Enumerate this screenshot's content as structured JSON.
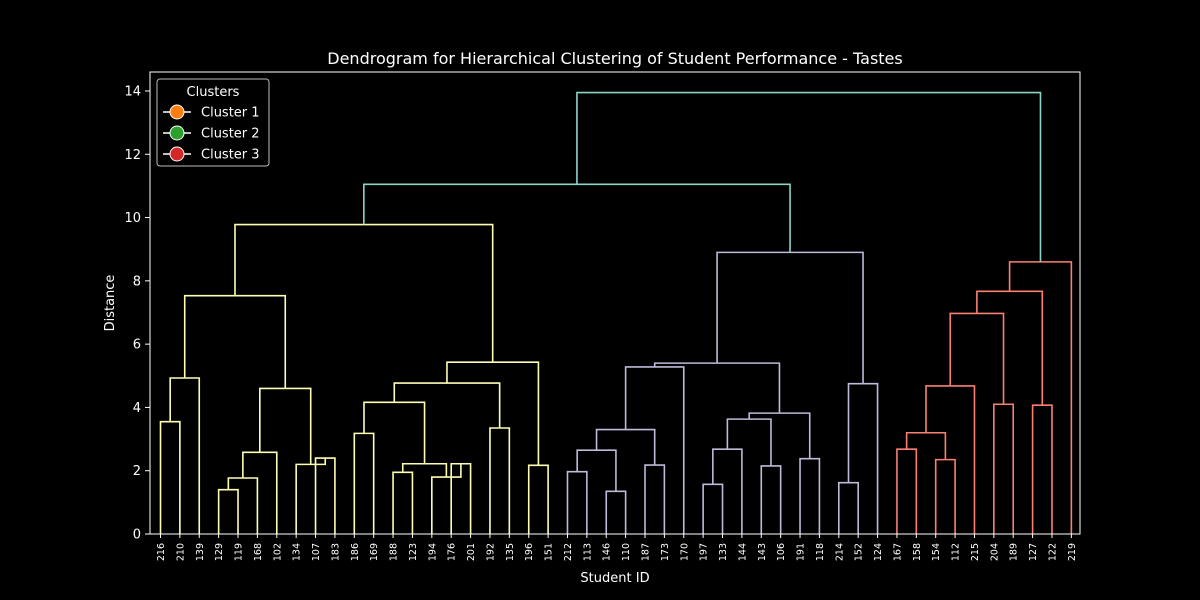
{
  "chart_data": {
    "type": "dendrogram",
    "title": "Dendrogram for Hierarchical Clustering of Student Performance - Tastes",
    "xlabel": "Student ID",
    "ylabel": "Distance",
    "ylim": [
      0,
      14.6
    ],
    "yticks": [
      0,
      2,
      4,
      6,
      8,
      10,
      12,
      14
    ],
    "leaves": [
      "216",
      "210",
      "139",
      "129",
      "119",
      "168",
      "102",
      "134",
      "107",
      "183",
      "186",
      "169",
      "188",
      "123",
      "194",
      "176",
      "201",
      "192",
      "135",
      "196",
      "151",
      "212",
      "113",
      "146",
      "110",
      "187",
      "173",
      "170",
      "197",
      "133",
      "144",
      "143",
      "106",
      "191",
      "118",
      "214",
      "152",
      "124",
      "167",
      "158",
      "154",
      "112",
      "215",
      "204",
      "189",
      "127",
      "122",
      "219"
    ],
    "legend": {
      "title": "Clusters",
      "position": "upper-left",
      "items": [
        {
          "label": "Cluster 1",
          "color": "#ff7f0e"
        },
        {
          "label": "Cluster 2",
          "color": "#2ca02c"
        },
        {
          "label": "Cluster 3",
          "color": "#d62728"
        }
      ]
    },
    "colors": {
      "background": "#000000",
      "axes": "#ffffff",
      "root_link": "#8dd3c7",
      "group_1": "#ffffb3",
      "group_2": "#bebada",
      "group_3": "#fb8072"
    },
    "merges": [
      {
        "left": 0,
        "right": 1,
        "height": 3.55,
        "color": "group_1"
      },
      {
        "left": 48,
        "right": 2,
        "height": 4.93,
        "color": "group_1"
      },
      {
        "left": 3,
        "right": 4,
        "height": 1.4,
        "color": "group_1"
      },
      {
        "left": 50,
        "right": 5,
        "height": 1.77,
        "color": "group_1"
      },
      {
        "left": 51,
        "right": 6,
        "height": 2.58,
        "color": "group_1"
      },
      {
        "left": 8,
        "right": 9,
        "height": 2.4,
        "color": "group_1"
      },
      {
        "left": 7,
        "right": 53,
        "height": 2.2,
        "color": "group_1"
      },
      {
        "left": 52,
        "right": 54,
        "height": 4.6,
        "color": "group_1"
      },
      {
        "left": 49,
        "right": 55,
        "height": 7.53,
        "color": "group_1"
      },
      {
        "left": 10,
        "right": 11,
        "height": 3.18,
        "color": "group_1"
      },
      {
        "left": 12,
        "right": 13,
        "height": 1.95,
        "color": "group_1"
      },
      {
        "left": 15,
        "right": 16,
        "height": 2.22,
        "color": "group_1"
      },
      {
        "left": 14,
        "right": 59,
        "height": 1.8,
        "color": "group_1"
      },
      {
        "left": 58,
        "right": 60,
        "height": 2.22,
        "color": "group_1"
      },
      {
        "left": 57,
        "right": 61,
        "height": 4.16,
        "color": "group_1"
      },
      {
        "left": 17,
        "right": 18,
        "height": 3.35,
        "color": "group_1"
      },
      {
        "left": 62,
        "right": 63,
        "height": 4.77,
        "color": "group_1"
      },
      {
        "left": 19,
        "right": 20,
        "height": 2.17,
        "color": "group_1"
      },
      {
        "left": 64,
        "right": 65,
        "height": 5.43,
        "color": "group_1"
      },
      {
        "left": 56,
        "right": 66,
        "height": 9.78,
        "color": "group_1"
      },
      {
        "left": 21,
        "right": 22,
        "height": 1.97,
        "color": "group_2"
      },
      {
        "left": 23,
        "right": 24,
        "height": 1.35,
        "color": "group_2"
      },
      {
        "left": 68,
        "right": 69,
        "height": 2.65,
        "color": "group_2"
      },
      {
        "left": 25,
        "right": 26,
        "height": 2.18,
        "color": "group_2"
      },
      {
        "left": 70,
        "right": 71,
        "height": 3.3,
        "color": "group_2"
      },
      {
        "left": 72,
        "right": 27,
        "height": 5.28,
        "color": "group_2"
      },
      {
        "left": 28,
        "right": 29,
        "height": 1.57,
        "color": "group_2"
      },
      {
        "left": 74,
        "right": 30,
        "height": 2.68,
        "color": "group_2"
      },
      {
        "left": 31,
        "right": 32,
        "height": 2.15,
        "color": "group_2"
      },
      {
        "left": 75,
        "right": 76,
        "height": 3.63,
        "color": "group_2"
      },
      {
        "left": 33,
        "right": 34,
        "height": 2.38,
        "color": "group_2"
      },
      {
        "left": 77,
        "right": 78,
        "height": 3.82,
        "color": "group_2"
      },
      {
        "left": 73,
        "right": 79,
        "height": 5.4,
        "color": "group_2"
      },
      {
        "left": 35,
        "right": 36,
        "height": 1.62,
        "color": "group_2"
      },
      {
        "left": 81,
        "right": 37,
        "height": 4.75,
        "color": "group_2"
      },
      {
        "left": 80,
        "right": 82,
        "height": 8.9,
        "color": "group_2"
      },
      {
        "left": 67,
        "right": 83,
        "height": 11.05,
        "color": "root_link"
      },
      {
        "left": 38,
        "right": 39,
        "height": 2.68,
        "color": "group_3"
      },
      {
        "left": 40,
        "right": 41,
        "height": 2.35,
        "color": "group_3"
      },
      {
        "left": 85,
        "right": 86,
        "height": 3.2,
        "color": "group_3"
      },
      {
        "left": 87,
        "right": 42,
        "height": 4.68,
        "color": "group_3"
      },
      {
        "left": 43,
        "right": 44,
        "height": 4.1,
        "color": "group_3"
      },
      {
        "left": 88,
        "right": 89,
        "height": 6.97,
        "color": "group_3"
      },
      {
        "left": 45,
        "right": 46,
        "height": 4.07,
        "color": "group_3"
      },
      {
        "left": 90,
        "right": 91,
        "height": 7.67,
        "color": "group_3"
      },
      {
        "left": 92,
        "right": 47,
        "height": 8.6,
        "color": "group_3"
      },
      {
        "left": 84,
        "right": 93,
        "height": 13.95,
        "color": "root_link"
      }
    ]
  }
}
